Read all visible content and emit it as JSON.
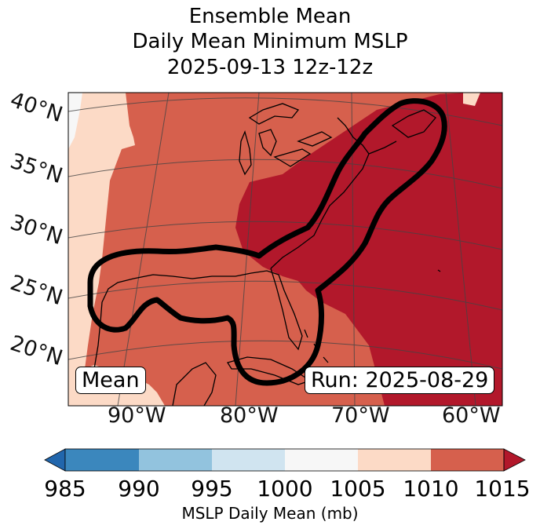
{
  "title": {
    "line1": "Ensemble Mean",
    "line2": "Daily Mean Minimum MSLP",
    "line3": "2025-09-13 12z-12z"
  },
  "map": {
    "lat_labels": [
      "40°N",
      "35°N",
      "30°N",
      "25°N",
      "20°N"
    ],
    "lon_labels": [
      "90°W",
      "80°W",
      "70°W",
      "60°W"
    ],
    "stat_box": "Mean",
    "run_box": "Run: 2025-08-29",
    "contour": "ensemble mean low-pressure track outline",
    "fill_colors": {
      "985-990": "#3b87bd",
      "990-995": "#92c3de",
      "995-1000": "#d0e4f0",
      "1000-1005": "#f7f7f7",
      "1005-1010": "#fcdac6",
      "1010-1015": "#d6604d",
      "1015+": "#b2182b"
    }
  },
  "colorbar": {
    "ticks": [
      "985",
      "990",
      "995",
      "1000",
      "1005",
      "1010",
      "1015"
    ],
    "label": "MSLP Daily Mean (mb)",
    "bin_colors": [
      "#3b87bd",
      "#92c3de",
      "#d0e4f0",
      "#f7f7f7",
      "#fcdac6",
      "#d6604d"
    ],
    "under_color": "#2166ac",
    "over_color": "#b2182b"
  }
}
